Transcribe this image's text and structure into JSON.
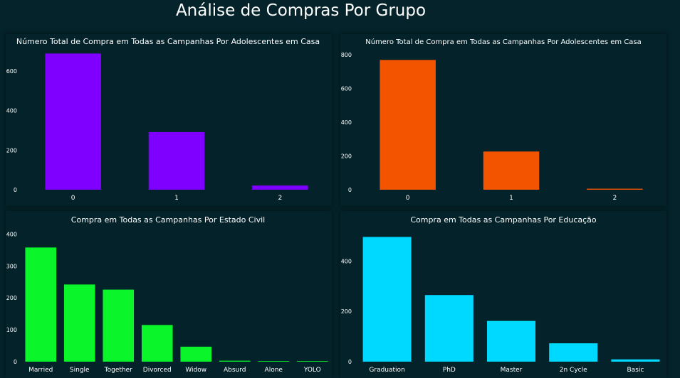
{
  "page": {
    "title": "Análise de Compras Por Grupo"
  },
  "chart_data": [
    {
      "type": "bar",
      "title": "Número Total de Compra em Todas as Campanhas Por Adolescentes em Casa",
      "categories": [
        "0",
        "1",
        "2"
      ],
      "values": [
        688,
        291,
        21
      ],
      "ylim": [
        0,
        700
      ],
      "yticks": [
        0,
        200,
        400,
        600
      ],
      "color": "#8000ff",
      "grid": false
    },
    {
      "type": "bar",
      "title": "Número Total de Compra em Todas as Campanhas Por Adolescentes em Casa",
      "categories": [
        "0",
        "1",
        "2"
      ],
      "values": [
        768,
        226,
        6
      ],
      "ylim": [
        0,
        820
      ],
      "yticks": [
        0,
        200,
        400,
        600,
        800
      ],
      "color": "#f25400",
      "grid": false
    },
    {
      "type": "bar",
      "title": "Compra em Todas as Campanhas Por Estado Civil",
      "categories": [
        "Married",
        "Single",
        "Together",
        "Divorced",
        "Widow",
        "Absurd",
        "Alone",
        "YOLO"
      ],
      "values": [
        358,
        242,
        226,
        115,
        47,
        3,
        2,
        2
      ],
      "ylim": [
        0,
        410
      ],
      "yticks": [
        0,
        100,
        200,
        300,
        400
      ],
      "color": "#0af52a",
      "grid": false
    },
    {
      "type": "bar",
      "title": "Compra em Todas as Campanhas Por Educação",
      "categories": [
        "Graduation",
        "PhD",
        "Master",
        "2n Cycle",
        "Basic"
      ],
      "values": [
        496,
        265,
        162,
        73,
        9
      ],
      "ylim": [
        0,
        520
      ],
      "yticks": [
        0,
        200,
        400
      ],
      "color": "#00d9ff",
      "grid": false
    }
  ]
}
